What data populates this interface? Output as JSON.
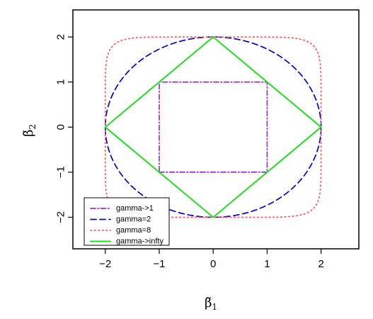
{
  "chart_data": {
    "type": "line",
    "title": "",
    "xlabel": {
      "base": "β̃",
      "sub": "1"
    },
    "ylabel": {
      "base": "β̃",
      "sub": "2"
    },
    "xlim": [
      -2.6,
      2.7
    ],
    "ylim": [
      -2.7,
      2.6
    ],
    "x_ticks": [
      -2,
      -1,
      0,
      1,
      2
    ],
    "y_ticks": [
      -2,
      -1,
      0,
      1,
      2
    ],
    "x_tick_labels": [
      "−2",
      "−1",
      "0",
      "1",
      "2"
    ],
    "y_tick_labels": [
      "−2",
      "−1",
      "0",
      "1",
      "2"
    ],
    "grid": false,
    "legend_position": "bottom-left",
    "series": [
      {
        "name": "gamma->1",
        "gamma": 1,
        "color": "#9933cc",
        "dash": "dashdot",
        "points": [
          [
            -1,
            -1
          ],
          [
            1,
            -1
          ],
          [
            1,
            1
          ],
          [
            -1,
            1
          ],
          [
            -1,
            -1
          ]
        ]
      },
      {
        "name": "gamma=2",
        "gamma": 2,
        "color": "#0000dd",
        "dash": "dashed"
      },
      {
        "name": "gamma=8",
        "gamma": 8,
        "color": "#ff5555",
        "dash": "dotted"
      },
      {
        "name": "gamma->infty",
        "gamma": "infty",
        "color": "#22dd22",
        "dash": "solid",
        "points": [
          [
            2,
            0
          ],
          [
            0,
            2
          ],
          [
            -2,
            0
          ],
          [
            0,
            -2
          ],
          [
            2,
            0
          ]
        ]
      }
    ]
  }
}
